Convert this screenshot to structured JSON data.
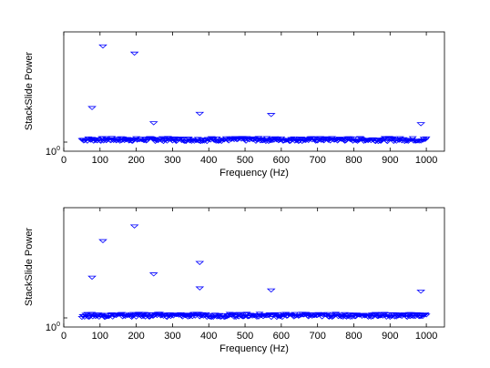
{
  "chart_data": [
    {
      "type": "scatter",
      "title": "",
      "xlabel": "Frequency (Hz)",
      "ylabel": "StackSlide Power",
      "xlim": [
        0,
        1050
      ],
      "ytick_label": {
        "base": "10",
        "exp": "0"
      },
      "xticks": [
        0,
        100,
        200,
        300,
        400,
        500,
        600,
        700,
        800,
        900,
        1000
      ],
      "marker": "triangle-down",
      "marker_color": "#0000ff",
      "grid": false,
      "band": {
        "x_from": 50,
        "x_to": 1000,
        "y_low": 1.0,
        "y_high": 1.07
      },
      "outliers": [
        {
          "x": 108,
          "y": 4.6
        },
        {
          "x": 195,
          "y": 4.1
        },
        {
          "x": 78,
          "y": 1.72
        },
        {
          "x": 375,
          "y": 1.57
        },
        {
          "x": 572,
          "y": 1.54
        },
        {
          "x": 248,
          "y": 1.35
        },
        {
          "x": 985,
          "y": 1.33
        }
      ]
    },
    {
      "type": "scatter",
      "title": "",
      "xlabel": "Frequency (Hz)",
      "ylabel": "StackSlide Power",
      "xlim": [
        0,
        1050
      ],
      "ytick_label": {
        "base": "10",
        "exp": "0"
      },
      "xticks": [
        0,
        100,
        200,
        300,
        400,
        500,
        600,
        700,
        800,
        900,
        1000
      ],
      "marker": "triangle-down",
      "marker_color": "#0000ff",
      "grid": false,
      "band": {
        "x_from": 50,
        "x_to": 1000,
        "y_low": 1.0,
        "y_high": 1.07
      },
      "outliers": [
        {
          "x": 195,
          "y": 4.3
        },
        {
          "x": 108,
          "y": 3.4
        },
        {
          "x": 375,
          "y": 2.4
        },
        {
          "x": 248,
          "y": 2.0
        },
        {
          "x": 78,
          "y": 1.9
        },
        {
          "x": 375,
          "y": 1.6
        },
        {
          "x": 572,
          "y": 1.55
        },
        {
          "x": 985,
          "y": 1.52
        }
      ]
    }
  ]
}
